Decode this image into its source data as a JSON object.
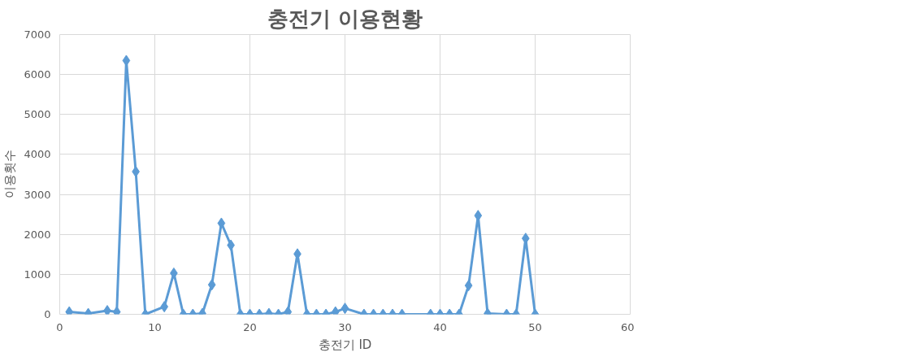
{
  "chart_data": {
    "type": "line",
    "title": "충전기 이용현황",
    "xlabel": "충전기 ID",
    "ylabel": "이용횟수",
    "x": [
      1,
      3,
      5,
      6,
      7,
      8,
      9,
      11,
      12,
      13,
      14,
      15,
      16,
      17,
      18,
      19,
      20,
      21,
      22,
      23,
      24,
      25,
      26,
      27,
      28,
      29,
      30,
      32,
      33,
      34,
      35,
      36,
      39,
      40,
      41,
      42,
      43,
      44,
      45,
      47,
      48,
      49,
      50
    ],
    "series": [
      {
        "color": "#5b9bd5",
        "values": [
          60,
          20,
          90,
          60,
          6350,
          3570,
          0,
          190,
          1030,
          0,
          0,
          20,
          740,
          2280,
          1730,
          0,
          0,
          0,
          20,
          0,
          60,
          1510,
          0,
          0,
          0,
          60,
          150,
          0,
          0,
          0,
          0,
          0,
          0,
          0,
          0,
          0,
          720,
          2470,
          20,
          0,
          0,
          1900,
          0
        ]
      }
    ],
    "xlim": [
      0,
      60
    ],
    "xticks": [
      0,
      10,
      20,
      30,
      40,
      50,
      60
    ],
    "ylim": [
      0,
      7000
    ],
    "yticks": [
      0,
      1000,
      2000,
      3000,
      4000,
      5000,
      6000,
      7000
    ],
    "grid": true,
    "marker": "diamond",
    "line_style": "solid"
  }
}
